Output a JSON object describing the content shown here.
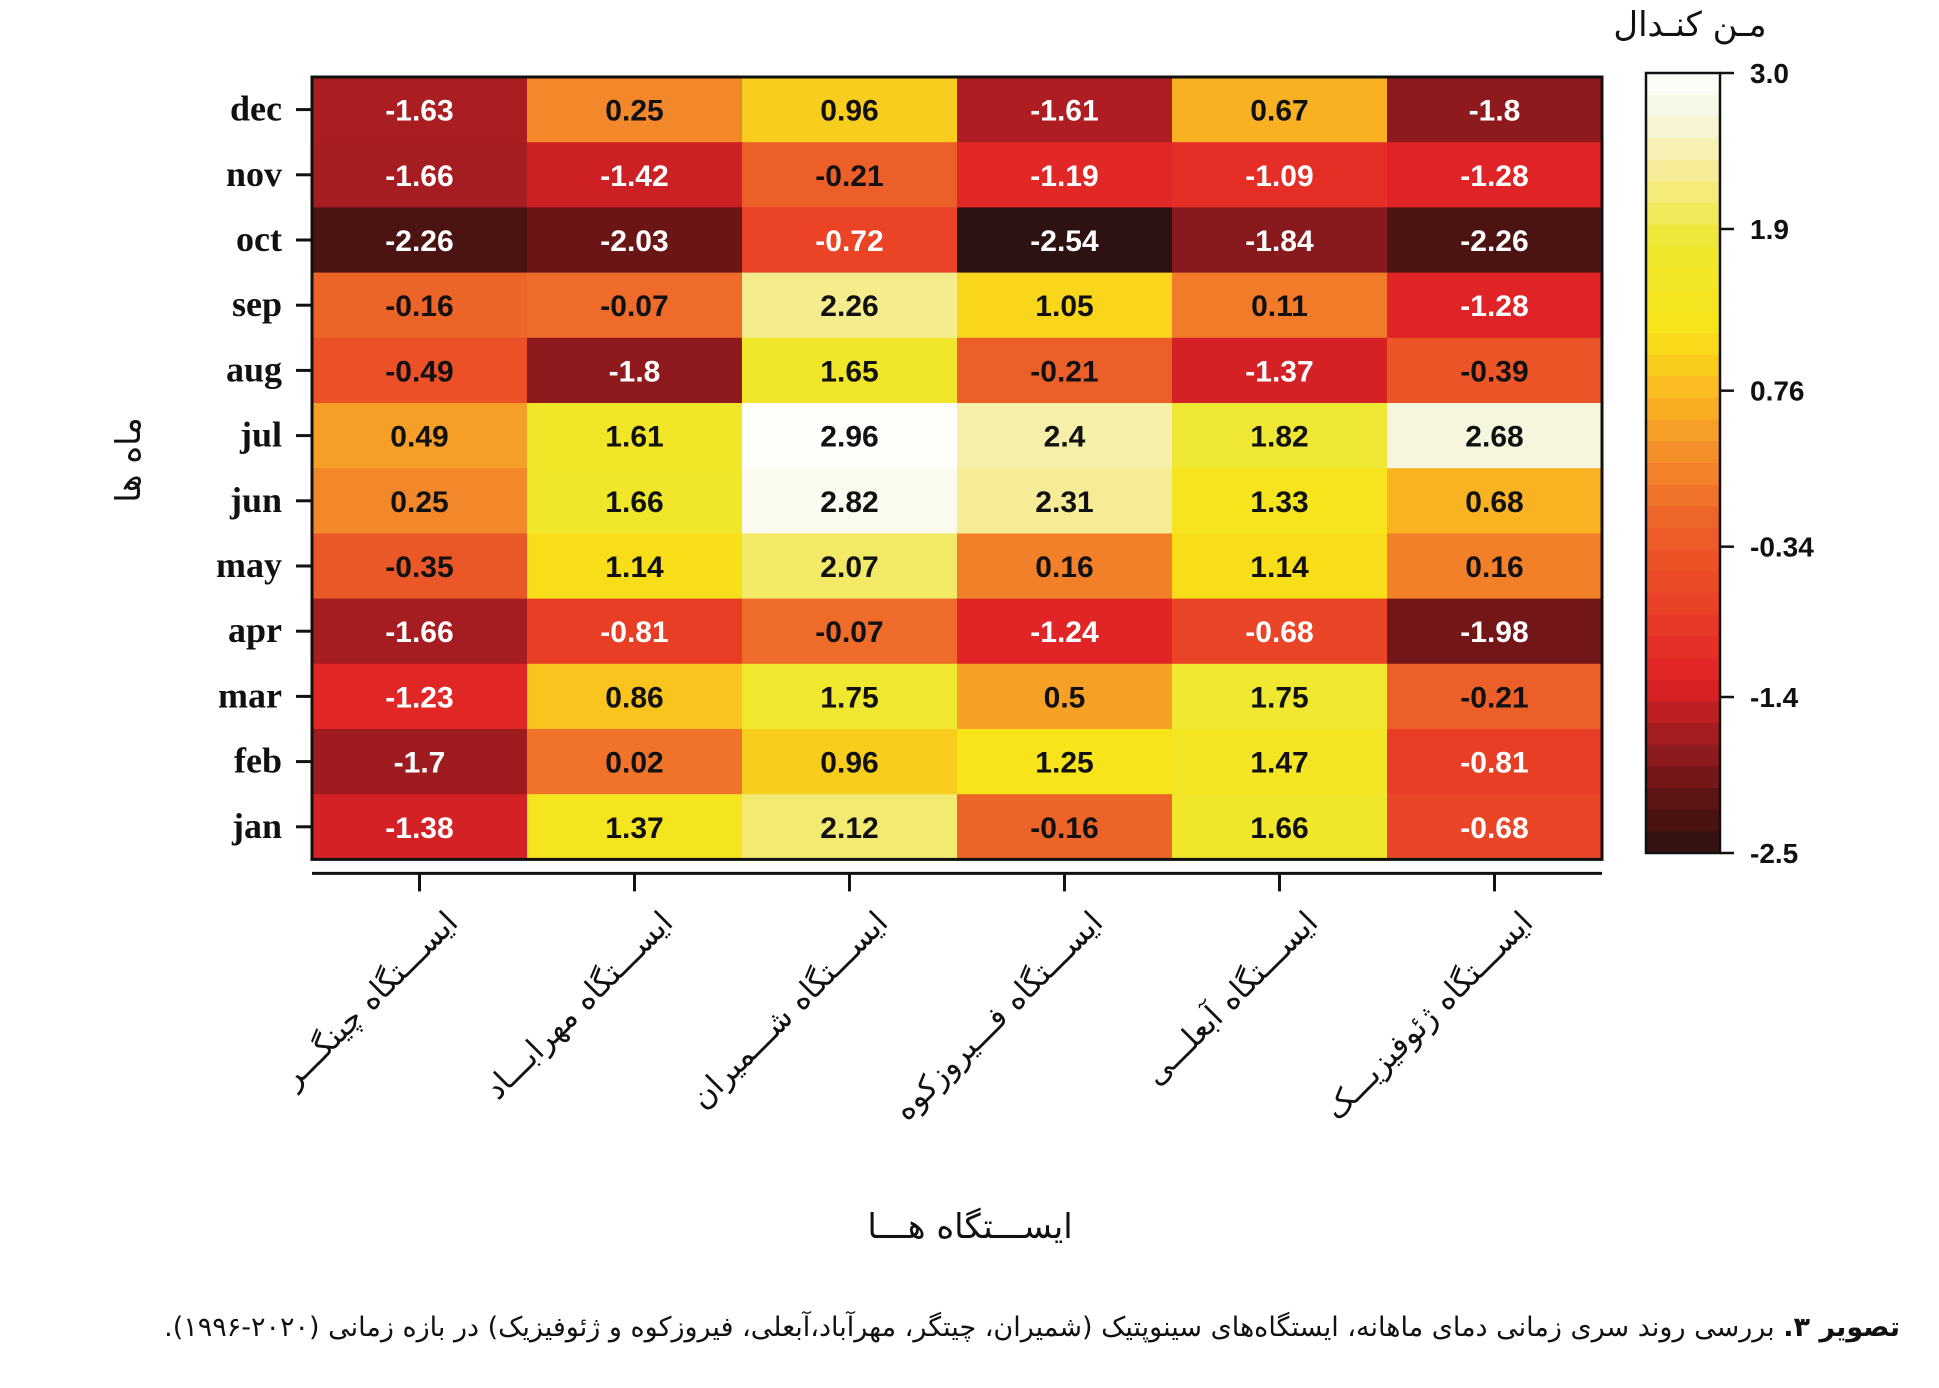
{
  "chart_data": {
    "type": "heatmap",
    "title": "",
    "xlabel": "ایســـتگاه هـــا",
    "ylabel": "ماه ها",
    "colorbar_title": "مـن کنـدال",
    "colorbar_ticks": [
      "3.0",
      "1.9",
      "0.76",
      "-0.34",
      "-1.4",
      "-2.5"
    ],
    "colorbar_range": [
      -2.5,
      3.0
    ],
    "colorscale": "heat (black-red-orange-yellow-white)",
    "rows": [
      "dec",
      "nov",
      "oct",
      "sep",
      "aug",
      "jul",
      "jun",
      "may",
      "apr",
      "mar",
      "feb",
      "jan"
    ],
    "columns": [
      "ایســـتگاه چینگـــر",
      "ایســـتگاه مهرابـــاد",
      "ایســـتگاه شـــمیران",
      "ایســـتگاه فـــیروزکوه",
      "ایســـتگاه آبعلـــی",
      "ایســـتگاه ژئوفیزیـــک"
    ],
    "values": [
      [
        "-1.63",
        "0.25",
        "0.96",
        "-1.61",
        "0.67",
        "-1.8"
      ],
      [
        "-1.66",
        "-1.42",
        "-0.21",
        "-1.19",
        "-1.09",
        "-1.28"
      ],
      [
        "-2.26",
        "-2.03",
        "-0.72",
        "-2.54",
        "-1.84",
        "-2.26"
      ],
      [
        "-0.16",
        "-0.07",
        "2.26",
        "1.05",
        "0.11",
        "-1.28"
      ],
      [
        "-0.49",
        "-1.8",
        "1.65",
        "-0.21",
        "-1.37",
        "-0.39"
      ],
      [
        "0.49",
        "1.61",
        "2.96",
        "2.4",
        "1.82",
        "2.68"
      ],
      [
        "0.25",
        "1.66",
        "2.82",
        "2.31",
        "1.33",
        "0.68"
      ],
      [
        "-0.35",
        "1.14",
        "2.07",
        "0.16",
        "1.14",
        "0.16"
      ],
      [
        "-1.66",
        "-0.81",
        "-0.07",
        "-1.24",
        "-0.68",
        "-1.98"
      ],
      [
        "-1.23",
        "0.86",
        "1.75",
        "0.5",
        "1.75",
        "-0.21"
      ],
      [
        "-1.7",
        "0.02",
        "0.96",
        "1.25",
        "1.47",
        "-0.81"
      ],
      [
        "-1.38",
        "1.37",
        "2.12",
        "-0.16",
        "1.66",
        "-0.68"
      ]
    ]
  },
  "caption": {
    "label": "تصویر ۳.",
    "text": " بررسی روند سری زمانی دمای ماهانه، ایستگاه‌های سینوپتیک (شمیران، چیتگر، مهرآباد،آبعلی، فیروزکوه و ژئوفیزیک) در بازه زمانی (۲۰۲۰-۱۹۹۶)."
  }
}
